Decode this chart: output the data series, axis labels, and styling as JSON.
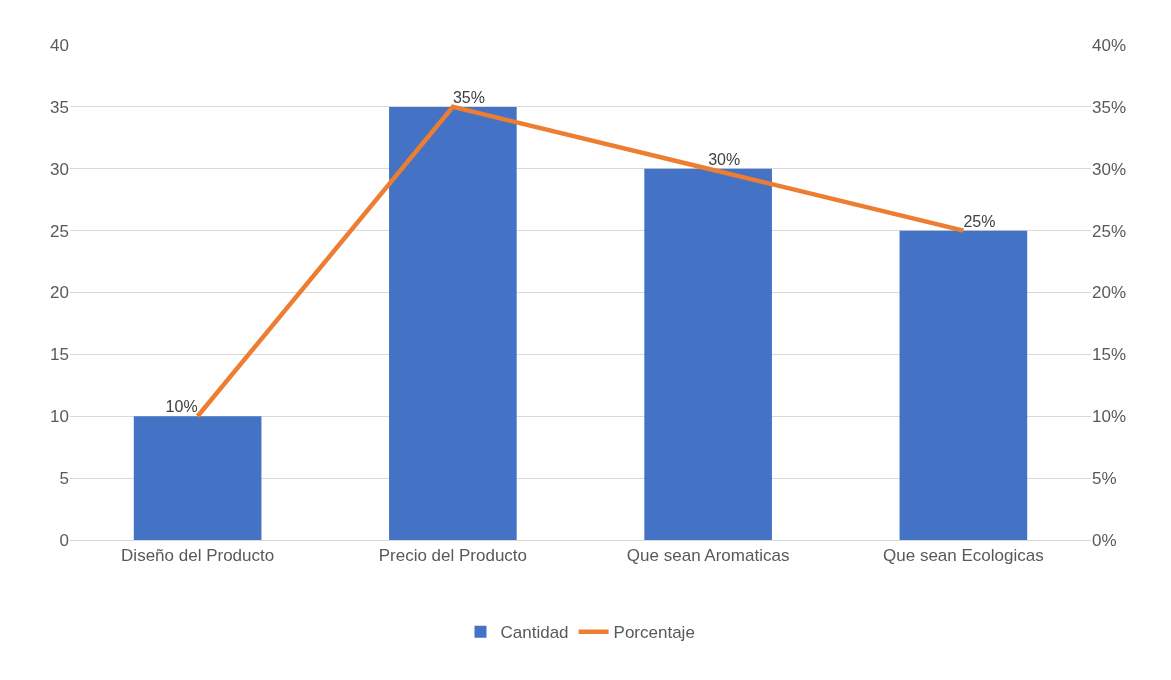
{
  "chart_data": {
    "type": "bar",
    "categories": [
      "Diseño del Producto",
      "Precio del Producto",
      "Que sean Aromaticas",
      "Que sean Ecologicas"
    ],
    "series": [
      {
        "name": "Cantidad",
        "color": "#4472c4",
        "values": [
          10,
          35,
          30,
          25
        ]
      },
      {
        "name": "Porcentaje",
        "type": "line",
        "axis": "y2",
        "color": "#ed7d31",
        "values": [
          10,
          35,
          30,
          25
        ],
        "value_labels": [
          "10%",
          "35%",
          "30%",
          "25%"
        ]
      }
    ],
    "ylim": [
      0,
      40
    ],
    "yticks": [
      0,
      5,
      10,
      15,
      20,
      25,
      30,
      35,
      40
    ],
    "y2lim": [
      0,
      40
    ],
    "y2ticks": [
      {
        "value": 0,
        "label": "0%"
      },
      {
        "value": 5,
        "label": "5%"
      },
      {
        "value": 10,
        "label": "10%"
      },
      {
        "value": 15,
        "label": "15%"
      },
      {
        "value": 20,
        "label": "20%"
      },
      {
        "value": 25,
        "label": "25%"
      },
      {
        "value": 30,
        "label": "30%"
      },
      {
        "value": 35,
        "label": "35%"
      },
      {
        "value": 40,
        "label": "40%"
      }
    ],
    "grid": "y",
    "legend": "bottom",
    "marker": "none"
  }
}
